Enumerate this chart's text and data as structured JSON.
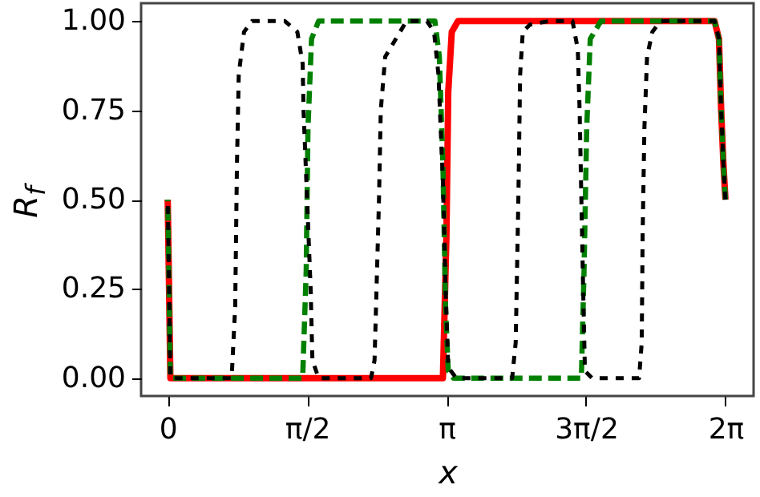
{
  "chart_data": {
    "type": "line",
    "xlabel": "x",
    "ylabel": "R$_{f}$",
    "xlim": [
      -0.3,
      6.6
    ],
    "ylim": [
      -0.05,
      1.05
    ],
    "xticks": [
      {
        "value": 0,
        "label": "0"
      },
      {
        "value": 1.5708,
        "label": "π/2"
      },
      {
        "value": 3.1416,
        "label": "π"
      },
      {
        "value": 4.7124,
        "label": "3π/2"
      },
      {
        "value": 6.2832,
        "label": "2π"
      }
    ],
    "yticks": [
      {
        "value": 0,
        "label": "0.00"
      },
      {
        "value": 0.25,
        "label": "0.25"
      },
      {
        "value": 0.5,
        "label": "0.50"
      },
      {
        "value": 0.75,
        "label": "0.75"
      },
      {
        "value": 1,
        "label": "1.00"
      }
    ],
    "grid": false,
    "series": [
      {
        "color": "#ff0000",
        "line_style": "solid",
        "x": [
          0,
          0.03,
          3.1,
          3.14,
          3.16,
          3.2,
          3.27,
          6.16,
          6.21,
          6.235,
          6.26,
          6.283
        ],
        "values": [
          0.5,
          0,
          0,
          0.4,
          0.8,
          0.97,
          1,
          1,
          0.95,
          0.75,
          0.6,
          0.5
        ]
      },
      {
        "color": "#008000",
        "line_style": "dashed",
        "x": [
          0,
          0.03,
          1.52,
          1.56,
          1.58,
          1.62,
          1.7,
          3.01,
          3.06,
          3.1,
          3.13,
          3.16,
          3.22,
          4.66,
          4.69,
          4.72,
          4.76,
          4.88,
          6.16,
          6.21,
          6.235,
          6.26,
          6.283
        ],
        "values": [
          0.5,
          0,
          0,
          0.3,
          0.7,
          0.95,
          1,
          1,
          0.9,
          0.6,
          0.2,
          0.02,
          0,
          0,
          0.3,
          0.7,
          0.95,
          1,
          1,
          0.95,
          0.75,
          0.6,
          0.5
        ]
      },
      {
        "color": "#000000",
        "line_style": "dotted",
        "x": [
          0,
          0.03,
          0.72,
          0.76,
          0.78,
          0.8,
          0.86,
          0.95,
          1.32,
          1.46,
          1.52,
          1.53,
          1.57,
          1.61,
          1.63,
          1.7,
          2.29,
          2.33,
          2.38,
          2.4,
          2.45,
          2.69,
          2.92,
          3.0,
          3.05,
          3.1,
          3.13,
          3.16,
          3.25,
          3.88,
          3.92,
          3.95,
          3.97,
          4.0,
          4.08,
          4.3,
          4.56,
          4.62,
          4.64,
          4.66,
          4.68,
          4.7,
          4.78,
          5.31,
          5.34,
          5.35,
          5.37,
          5.4,
          5.46,
          5.55,
          6.16,
          6.21,
          6.235,
          6.26,
          6.283
        ],
        "values": [
          0.5,
          0,
          0,
          0.2,
          0.6,
          0.85,
          0.97,
          1,
          1,
          0.97,
          0.88,
          0.75,
          0.5,
          0.25,
          0.05,
          0,
          0,
          0.05,
          0.5,
          0.75,
          0.9,
          1,
          1,
          0.97,
          0.85,
          0.55,
          0.25,
          0.03,
          0,
          0,
          0.1,
          0.5,
          0.85,
          0.97,
          0.99,
          1,
          1,
          0.92,
          0.75,
          0.5,
          0.25,
          0.02,
          0,
          0,
          0.1,
          0.4,
          0.7,
          0.9,
          0.97,
          1,
          1,
          0.95,
          0.75,
          0.6,
          0.5
        ]
      }
    ]
  }
}
